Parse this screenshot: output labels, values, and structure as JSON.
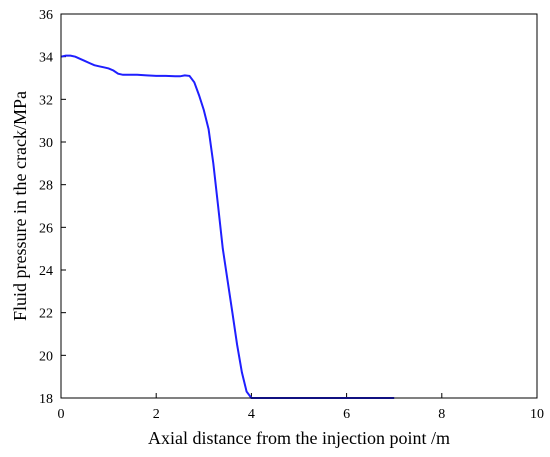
{
  "chart_data": {
    "type": "line",
    "title": "",
    "xlabel": "Axial distance from the injection point /m",
    "ylabel": "Fluid pressure in the crack/MPa",
    "xlim": [
      0,
      10
    ],
    "ylim": [
      18,
      36
    ],
    "x_ticks": [
      0,
      2,
      4,
      6,
      8,
      10
    ],
    "y_ticks": [
      18,
      20,
      22,
      24,
      26,
      28,
      30,
      32,
      34,
      36
    ],
    "grid": false,
    "legend": "none",
    "series": [
      {
        "color": "#1f1fff",
        "x": [
          0,
          0.1,
          0.2,
          0.3,
          0.4,
          0.5,
          0.6,
          0.7,
          0.8,
          0.9,
          1.0,
          1.1,
          1.2,
          1.3,
          1.4,
          1.6,
          1.8,
          2.0,
          2.2,
          2.4,
          2.5,
          2.6,
          2.7,
          2.8,
          2.9,
          3.0,
          3.1,
          3.2,
          3.3,
          3.4,
          3.5,
          3.6,
          3.7,
          3.8,
          3.9,
          4.0,
          5.0,
          6.0,
          7.0
        ],
        "y": [
          34.0,
          34.05,
          34.05,
          34.0,
          33.9,
          33.8,
          33.7,
          33.6,
          33.55,
          33.5,
          33.45,
          33.35,
          33.2,
          33.15,
          33.15,
          33.15,
          33.12,
          33.1,
          33.1,
          33.08,
          33.08,
          33.12,
          33.1,
          32.8,
          32.2,
          31.5,
          30.6,
          29.0,
          27.0,
          25.0,
          23.5,
          22.0,
          20.5,
          19.2,
          18.3,
          18.0,
          18.0,
          18.0,
          18.0
        ]
      }
    ]
  }
}
